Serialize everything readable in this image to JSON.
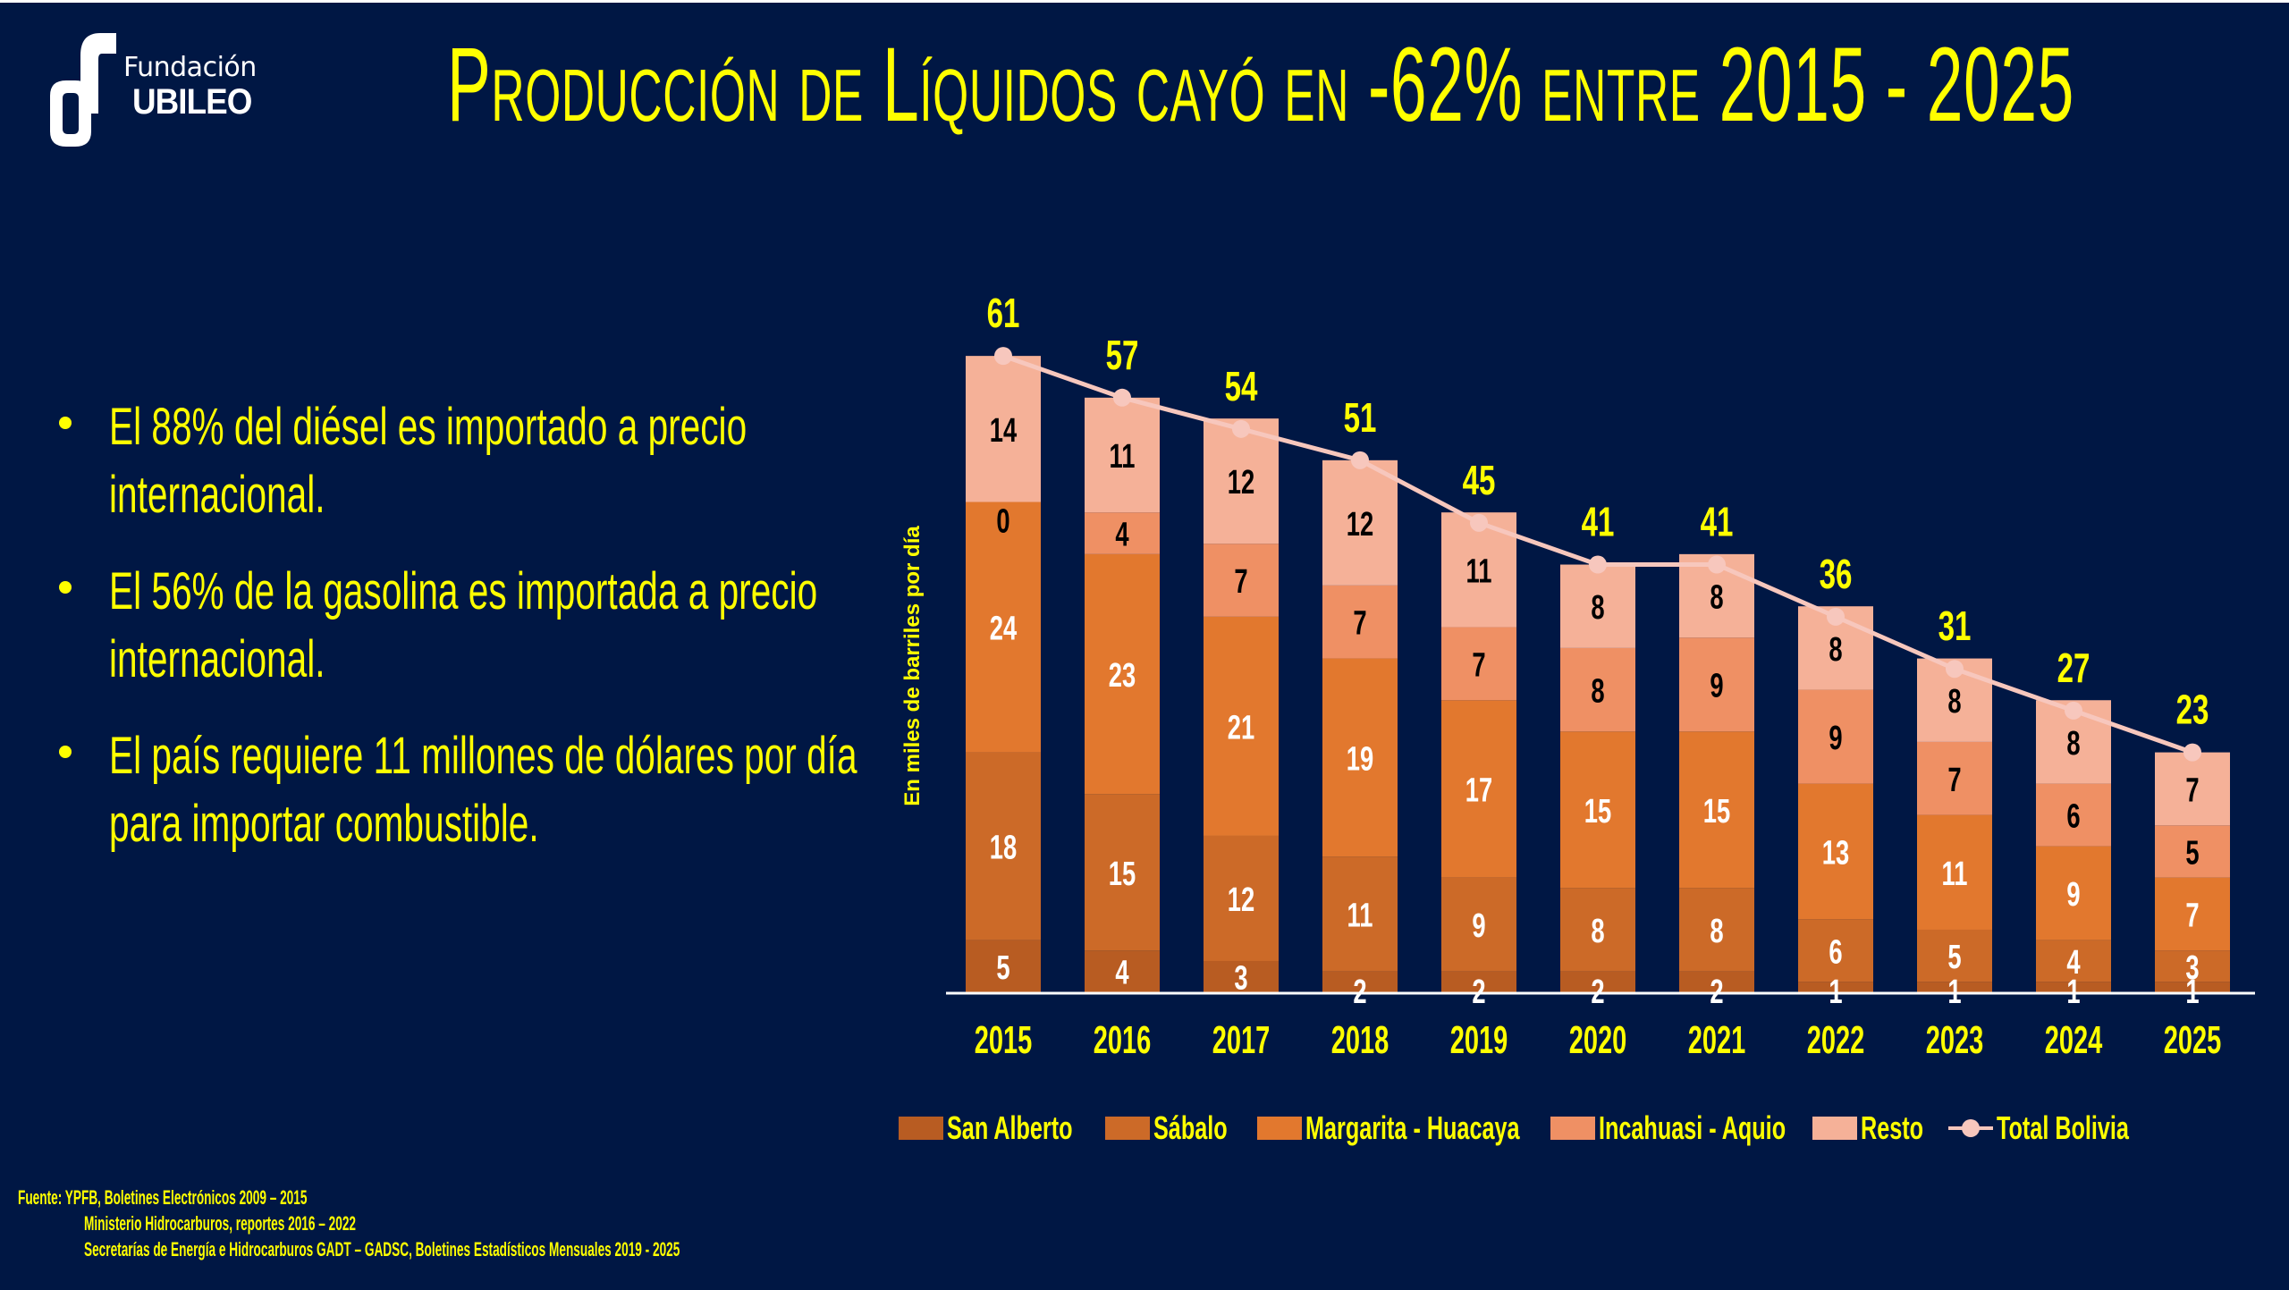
{
  "logo": {
    "line1": "Fundación",
    "line2": "UBILEO"
  },
  "title": "Producción de Líquidos cayó en -62% entre 2015 - 2025",
  "bullets": [
    "El 88% del diésel es importado a precio internacional.",
    "El 56% de la gasolina es importada a precio internacional.",
    "El país requiere 11 millones de dólares por día para importar combustible."
  ],
  "source": {
    "line1": "Fuente: YPFB, Boletines Electrónicos 2009 – 2015",
    "line2": "Ministerio Hidrocarburos, reportes 2016 – 2022",
    "line3": "Secretarías de Energía e Hidrocarburos GADT – GADSC, Boletines Estadísticos Mensuales 2019 - 2025"
  },
  "chart_data": {
    "type": "bar",
    "stacked": true,
    "title": "Producción de Líquidos cayó en -62% entre 2015 - 2025",
    "xlabel": "",
    "ylabel": "En miles de barriles por día",
    "categories": [
      "2015",
      "2016",
      "2017",
      "2018",
      "2019",
      "2020",
      "2021",
      "2022",
      "2023",
      "2024",
      "2025"
    ],
    "series": [
      {
        "name": "San Alberto",
        "color": "#b85c22",
        "label_color": "#ffffff",
        "values": [
          5,
          4,
          3,
          2,
          2,
          2,
          2,
          1,
          1,
          1,
          1
        ]
      },
      {
        "name": "Sábalo",
        "color": "#cc6a28",
        "label_color": "#ffffff",
        "values": [
          18,
          15,
          12,
          11,
          9,
          8,
          8,
          6,
          5,
          4,
          3
        ]
      },
      {
        "name": "Margarita - Huacaya",
        "color": "#e2782e",
        "label_color": "#ffffff",
        "values": [
          24,
          23,
          21,
          19,
          17,
          15,
          15,
          13,
          11,
          9,
          7
        ]
      },
      {
        "name": "Incahuasi - Aquio",
        "color": "#ef9064",
        "label_color": "#000000",
        "values": [
          0,
          4,
          7,
          7,
          7,
          8,
          9,
          9,
          7,
          6,
          5
        ]
      },
      {
        "name": "Resto",
        "color": "#f5b198",
        "label_color": "#000000",
        "values": [
          14,
          11,
          12,
          12,
          11,
          8,
          8,
          8,
          8,
          8,
          7
        ]
      }
    ],
    "line_series": {
      "name": "Total Bolivia",
      "color": "#f7c7bd",
      "label_color": "#ffff00",
      "values": [
        61,
        57,
        54,
        51,
        45,
        41,
        41,
        36,
        31,
        27,
        23
      ]
    },
    "ylim": [
      0,
      65
    ],
    "grid": false,
    "legend": "bottom",
    "axis_color": "#ffffff",
    "tick_label_color": "#ffff00"
  }
}
